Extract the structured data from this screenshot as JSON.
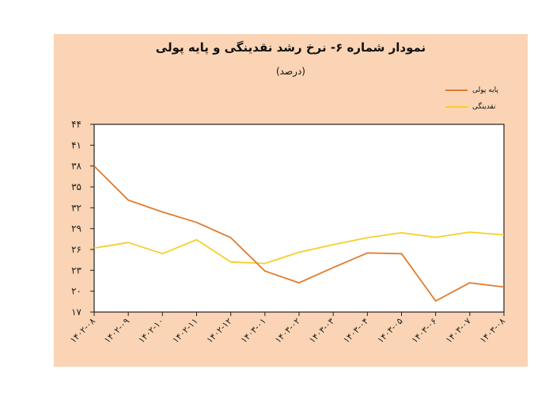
{
  "header": {
    "title": "نمودار شماره ۶- نرخ رشد نقدینگی و پایه پولی",
    "subtitle": "(درصد)"
  },
  "legend": [
    {
      "label": "پایه پولی",
      "color": "#e07b2c"
    },
    {
      "label": "نقدینگی",
      "color": "#f5cf2a"
    }
  ],
  "colors": {
    "panel_bg": "#fad4b4",
    "plot_bg": "#ffffff",
    "axis": "#222222"
  },
  "chart_data": {
    "type": "line",
    "title": "نمودار شماره ۶- نرخ رشد نقدینگی و پایه پولی",
    "subtitle": "(درصد)",
    "xlabel": "",
    "ylabel": "درصد",
    "categories": [
      "۱۴۰۲-۰۸",
      "۱۴۰۲-۰۹",
      "۱۴۰۲-۱۰",
      "۱۴۰۲-۱۱",
      "۱۴۰۲-۱۲",
      "۱۴۰۳-۰۱",
      "۱۴۰۳-۰۲",
      "۱۴۰۳-۰۳",
      "۱۴۰۳-۰۴",
      "۱۴۰۳-۰۵",
      "۱۴۰۳-۰۶",
      "۱۴۰۳-۰۷",
      "۱۴۰۳-۰۸"
    ],
    "series": [
      {
        "name": "پایه پولی",
        "color": "#e07b2c",
        "values": [
          38.0,
          33.1,
          31.4,
          29.9,
          27.7,
          22.9,
          21.2,
          23.4,
          25.5,
          25.4,
          18.6,
          21.2,
          20.6
        ]
      },
      {
        "name": "نقدینگی",
        "color": "#f5cf2a",
        "values": [
          26.2,
          27.0,
          25.4,
          27.4,
          24.2,
          24.0,
          25.6,
          26.7,
          27.7,
          28.4,
          27.75,
          28.5,
          28.1
        ]
      }
    ],
    "ylim": [
      17,
      44
    ],
    "yticks": [
      44,
      41,
      38,
      35,
      32,
      29,
      26,
      23,
      20,
      17
    ],
    "ytick_labels": [
      "۴۴",
      "۴۱",
      "۳۸",
      "۳۵",
      "۳۲",
      "۲۹",
      "۲۶",
      "۲۳",
      "۲۰",
      "۱۷"
    ],
    "grid": false,
    "legend_position": "top-right"
  }
}
